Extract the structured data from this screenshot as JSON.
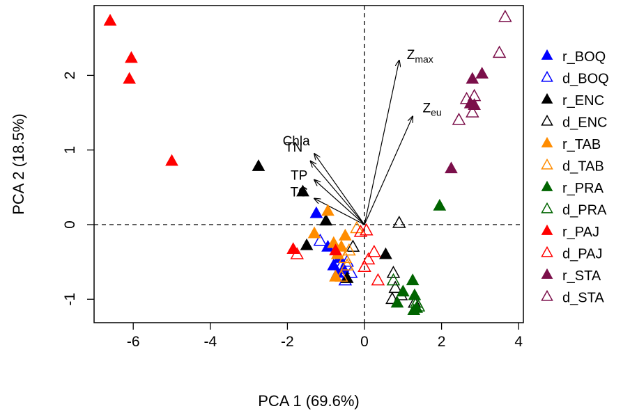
{
  "chart_data": {
    "type": "scatter",
    "title": "",
    "xlabel": "PCA 1 (69.6%)",
    "ylabel": "PCA 2 (18.5%)",
    "xlim": [
      -7,
      4
    ],
    "ylim": [
      -1.35,
      2.95
    ],
    "xticks": [
      "-6",
      "-4",
      "-2",
      "0",
      "2",
      "4"
    ],
    "xtick_values": [
      -6,
      -4,
      -2,
      0,
      2,
      4
    ],
    "yticks": [
      "-1",
      "0",
      "1",
      "2"
    ],
    "ytick_values": [
      -1,
      0,
      1,
      2
    ],
    "grid": false,
    "reference_lines": {
      "x": 0,
      "y": 0,
      "style": "dashed"
    },
    "legend_position": "right",
    "series": [
      {
        "name": "r_BOQ",
        "color": "#0000ff",
        "marker": "filled-triangle",
        "points": [
          [
            -1.25,
            0.15
          ],
          [
            -0.95,
            -0.3
          ],
          [
            -0.8,
            -0.55
          ],
          [
            -0.65,
            -0.45
          ],
          [
            -0.55,
            -0.6
          ],
          [
            -0.7,
            -0.65
          ]
        ]
      },
      {
        "name": "d_BOQ",
        "color": "#0000ff",
        "marker": "open-triangle",
        "points": [
          [
            -1.15,
            -0.22
          ],
          [
            -0.6,
            -0.55
          ],
          [
            -0.5,
            -0.75
          ],
          [
            -0.35,
            -0.65
          ],
          [
            -0.45,
            -0.5
          ]
        ]
      },
      {
        "name": "r_ENC",
        "color": "#000000",
        "marker": "filled-triangle",
        "points": [
          [
            -2.75,
            0.78
          ],
          [
            -1.6,
            0.44
          ],
          [
            -1.0,
            0.05
          ],
          [
            -1.5,
            -0.28
          ],
          [
            -0.45,
            -0.72
          ],
          [
            0.55,
            -0.4
          ]
        ]
      },
      {
        "name": "d_ENC",
        "color": "#000000",
        "marker": "open-triangle",
        "points": [
          [
            0.9,
            0.02
          ],
          [
            -0.3,
            -0.3
          ],
          [
            0.75,
            -0.65
          ],
          [
            0.8,
            -0.85
          ],
          [
            0.72,
            -1.0
          ],
          [
            1.3,
            -1.05
          ],
          [
            0.95,
            -0.95
          ]
        ]
      },
      {
        "name": "r_TAB",
        "color": "#ff8c00",
        "marker": "filled-triangle",
        "points": [
          [
            -1.3,
            -0.12
          ],
          [
            -0.95,
            0.18
          ],
          [
            -0.8,
            -0.25
          ],
          [
            -0.7,
            -0.4
          ],
          [
            -0.75,
            -0.7
          ],
          [
            -0.5,
            -0.15
          ],
          [
            -0.6,
            -0.3
          ]
        ]
      },
      {
        "name": "d_TAB",
        "color": "#ff8c00",
        "marker": "open-triangle",
        "points": [
          [
            -0.2,
            -0.05
          ],
          [
            -0.4,
            -0.35
          ],
          [
            -0.45,
            -0.55
          ],
          [
            -0.6,
            -0.7
          ],
          [
            -0.5,
            -0.45
          ]
        ]
      },
      {
        "name": "r_PRA",
        "color": "#006400",
        "marker": "filled-triangle",
        "points": [
          [
            1.95,
            0.25
          ],
          [
            1.25,
            -0.75
          ],
          [
            1.0,
            -0.9
          ],
          [
            0.85,
            -1.05
          ],
          [
            1.3,
            -0.95
          ],
          [
            1.35,
            -1.12
          ],
          [
            1.28,
            -1.15
          ]
        ]
      },
      {
        "name": "d_PRA",
        "color": "#006400",
        "marker": "open-triangle",
        "points": [
          [
            0.75,
            -0.75
          ],
          [
            1.35,
            -1.05
          ],
          [
            1.4,
            -1.1
          ]
        ]
      },
      {
        "name": "r_PAJ",
        "color": "#ff0000",
        "marker": "filled-triangle",
        "points": [
          [
            -6.6,
            2.73
          ],
          [
            -6.05,
            2.23
          ],
          [
            -6.1,
            1.95
          ],
          [
            -5.0,
            0.85
          ],
          [
            -1.85,
            -0.33
          ],
          [
            -0.75,
            -0.35
          ]
        ]
      },
      {
        "name": "d_PAJ",
        "color": "#ff0000",
        "marker": "open-triangle",
        "points": [
          [
            -1.75,
            -0.4
          ],
          [
            -0.1,
            -0.1
          ],
          [
            0.05,
            -0.08
          ],
          [
            0.25,
            -0.37
          ],
          [
            0.1,
            -0.47
          ],
          [
            0.0,
            -0.57
          ],
          [
            0.35,
            -0.75
          ]
        ]
      },
      {
        "name": "r_STA",
        "color": "#7b0f4a",
        "marker": "filled-triangle",
        "points": [
          [
            3.05,
            2.02
          ],
          [
            2.8,
            1.95
          ],
          [
            2.75,
            1.62
          ],
          [
            2.85,
            1.6
          ],
          [
            2.25,
            0.75
          ]
        ]
      },
      {
        "name": "d_STA",
        "color": "#7b0f4a",
        "marker": "open-triangle",
        "points": [
          [
            3.65,
            2.78
          ],
          [
            3.5,
            2.3
          ],
          [
            2.85,
            1.72
          ],
          [
            2.65,
            1.68
          ],
          [
            2.8,
            1.5
          ],
          [
            2.45,
            1.4
          ]
        ]
      }
    ],
    "vectors": [
      {
        "label": "Z",
        "subscript": "max",
        "x": 0.9,
        "y": 2.2
      },
      {
        "label": "Z",
        "subscript": "eu",
        "x": 1.25,
        "y": 1.45
      },
      {
        "label": "Chla",
        "subscript": "",
        "x": -1.3,
        "y": 0.95
      },
      {
        "label": "TN",
        "subscript": "",
        "x": -1.4,
        "y": 0.85
      },
      {
        "label": "TP",
        "subscript": "",
        "x": -1.3,
        "y": 0.6
      },
      {
        "label": "TC",
        "subscript": "",
        "x": -1.3,
        "y": 0.35
      }
    ]
  }
}
